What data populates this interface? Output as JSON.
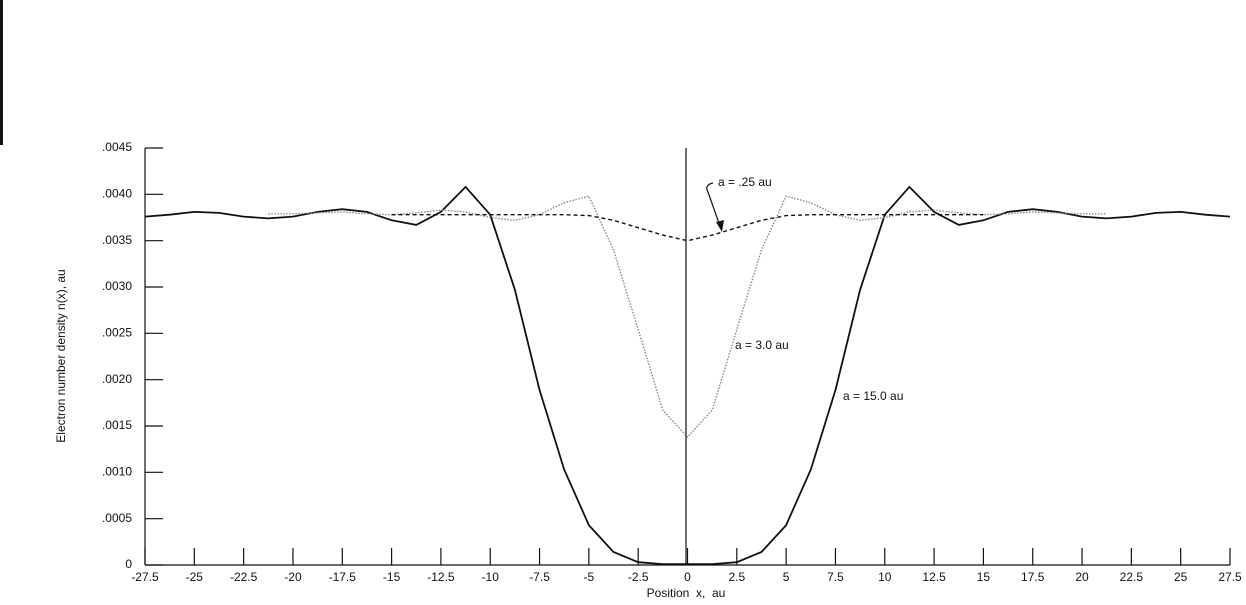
{
  "chart_data": {
    "type": "line",
    "x_label": "Position  x,  au",
    "y_label": "Electron number density n(x), au",
    "x": [
      -27.5,
      -26.25,
      -25,
      -23.75,
      -22.5,
      -21.25,
      -20,
      -18.75,
      -17.5,
      -16.25,
      -15,
      -13.75,
      -12.5,
      -11.25,
      -10,
      -8.75,
      -7.5,
      -6.25,
      -5,
      -3.75,
      -2.5,
      -1.25,
      0,
      1.25,
      2.5,
      3.75,
      5,
      6.25,
      7.5,
      8.75,
      10,
      11.25,
      12.5,
      13.75,
      15,
      16.25,
      17.5,
      18.75,
      20,
      21.25,
      22.5,
      23.75,
      25,
      26.25,
      27.5
    ],
    "series": [
      {
        "name": "a = 15.0 au",
        "color": "#111111",
        "style": "solid",
        "values": [
          0.00376,
          0.00378,
          0.00381,
          0.0038,
          0.00376,
          0.00374,
          0.00376,
          0.00381,
          0.00384,
          0.00381,
          0.00372,
          0.00367,
          0.00381,
          0.00408,
          0.00378,
          0.00297,
          0.00189,
          0.00103,
          0.00043,
          0.00014,
          3e-05,
          1e-05,
          1e-05,
          1e-05,
          3e-05,
          0.00014,
          0.00043,
          0.00103,
          0.00189,
          0.00297,
          0.00378,
          0.00408,
          0.00381,
          0.00367,
          0.00372,
          0.00381,
          0.00384,
          0.00381,
          0.00376,
          0.00374,
          0.00376,
          0.0038,
          0.00381,
          0.00378,
          0.00376
        ]
      },
      {
        "name": "a = 3.0 au",
        "color": "#888888",
        "style": "dotted",
        "values": [
          null,
          null,
          null,
          null,
          null,
          0.00379,
          0.00379,
          0.0038,
          0.00381,
          0.00379,
          0.00378,
          0.0038,
          0.00383,
          0.00381,
          0.00375,
          0.00372,
          0.00378,
          0.00391,
          0.00398,
          0.0034,
          0.00254,
          0.00167,
          0.00138,
          0.00167,
          0.00254,
          0.0034,
          0.00398,
          0.00391,
          0.00378,
          0.00372,
          0.00375,
          0.00381,
          0.00383,
          0.0038,
          0.00378,
          0.00379,
          0.00381,
          0.0038,
          0.00379,
          0.00379,
          null,
          null,
          null,
          null,
          null
        ]
      },
      {
        "name": "a = .25 au",
        "color": "#111111",
        "style": "dashed",
        "values": [
          null,
          null,
          null,
          null,
          null,
          null,
          null,
          null,
          null,
          null,
          0.00378,
          0.00378,
          0.00378,
          0.00378,
          0.00378,
          0.00378,
          0.00378,
          0.00378,
          0.00377,
          0.00372,
          0.00364,
          0.00356,
          0.0035,
          0.00356,
          0.00364,
          0.00372,
          0.00377,
          0.00378,
          0.00378,
          0.00378,
          0.00378,
          0.00378,
          0.00378,
          0.00378,
          0.00378,
          null,
          null,
          null,
          null,
          null,
          null,
          null,
          null,
          null,
          null
        ]
      }
    ],
    "xlim": [
      -27.5,
      27.5
    ],
    "xticks": [
      -27.5,
      -25,
      -22.5,
      -20,
      -17.5,
      -15,
      -12.5,
      -10,
      -7.5,
      -5,
      -2.5,
      0,
      2.5,
      5,
      7.5,
      10,
      12.5,
      15,
      17.5,
      20,
      22.5,
      25,
      27.5
    ],
    "ylim": [
      0,
      0.0045
    ],
    "yticks": [
      0,
      {
        "value": 0.0005,
        "label": ".0005"
      },
      {
        "value": 0.001,
        "label": ".0010"
      },
      {
        "value": 0.0015,
        "label": ".0015"
      },
      {
        "value": 0.002,
        "label": ".0020"
      },
      {
        "value": 0.0025,
        "label": ".0025"
      },
      {
        "value": 0.003,
        "label": ".0030"
      },
      {
        "value": 0.0035,
        "label": ".0035"
      },
      {
        "value": 0.004,
        "label": ".0040"
      },
      {
        "value": 0.0045,
        "label": ".0045"
      }
    ],
    "grid": false
  }
}
